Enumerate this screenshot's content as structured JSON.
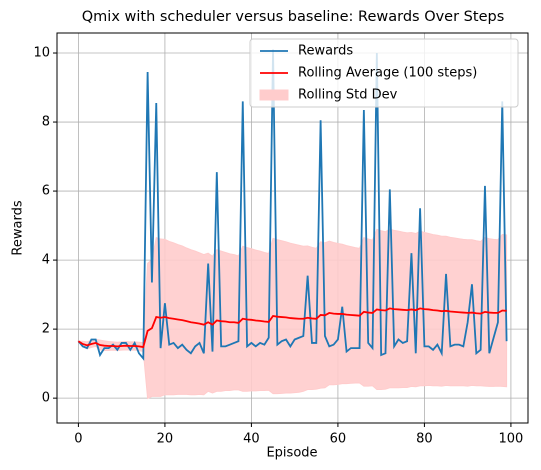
{
  "chart_data": {
    "type": "line",
    "title": "Qmix with scheduler versus baseline: Rewards Over Steps",
    "xlabel": "Episode",
    "ylabel": "Rewards",
    "x": [
      0,
      1,
      2,
      3,
      4,
      5,
      6,
      7,
      8,
      9,
      10,
      11,
      12,
      13,
      14,
      15,
      16,
      17,
      18,
      19,
      20,
      21,
      22,
      23,
      24,
      25,
      26,
      27,
      28,
      29,
      30,
      31,
      32,
      33,
      34,
      35,
      36,
      37,
      38,
      39,
      40,
      41,
      42,
      43,
      44,
      45,
      46,
      47,
      48,
      49,
      50,
      51,
      52,
      53,
      54,
      55,
      56,
      57,
      58,
      59,
      60,
      61,
      62,
      63,
      64,
      65,
      66,
      67,
      68,
      69,
      70,
      71,
      72,
      73,
      74,
      75,
      76,
      77,
      78,
      79,
      80,
      81,
      82,
      83,
      84,
      85,
      86,
      87,
      88,
      89,
      90,
      91,
      92,
      93,
      94,
      95,
      96,
      97,
      98,
      99
    ],
    "series": [
      {
        "name": "Rewards",
        "color": "#1f77b4",
        "values": [
          1.65,
          1.5,
          1.45,
          1.7,
          1.7,
          1.25,
          1.45,
          1.45,
          1.55,
          1.4,
          1.6,
          1.6,
          1.4,
          1.6,
          1.3,
          1.15,
          9.45,
          3.35,
          8.55,
          1.45,
          2.75,
          1.55,
          1.6,
          1.45,
          1.55,
          1.4,
          1.3,
          1.5,
          1.6,
          1.3,
          3.9,
          1.35,
          6.55,
          1.5,
          1.5,
          1.55,
          1.6,
          1.65,
          8.6,
          1.5,
          1.6,
          1.5,
          1.6,
          1.55,
          1.75,
          10.1,
          1.55,
          1.65,
          1.7,
          1.5,
          1.7,
          1.75,
          1.8,
          3.55,
          1.6,
          1.6,
          8.05,
          1.8,
          1.5,
          1.55,
          1.7,
          2.65,
          1.35,
          1.45,
          1.45,
          1.45,
          8.35,
          1.6,
          1.45,
          10.0,
          1.25,
          1.3,
          6.05,
          1.5,
          1.7,
          1.6,
          1.65,
          4.2,
          1.3,
          5.5,
          1.5,
          1.5,
          1.4,
          1.55,
          1.3,
          3.6,
          1.5,
          1.55,
          1.55,
          1.5,
          2.2,
          3.3,
          1.3,
          1.4,
          6.15,
          1.3,
          1.75,
          2.2,
          8.6,
          1.65
        ]
      },
      {
        "name": "Rolling Average (100 steps)",
        "color": "#ff0000",
        "values": [
          1.65,
          1.57,
          1.53,
          1.57,
          1.6,
          1.54,
          1.52,
          1.51,
          1.51,
          1.5,
          1.51,
          1.52,
          1.51,
          1.51,
          1.5,
          1.48,
          1.95,
          2.03,
          2.35,
          2.33,
          2.35,
          2.32,
          2.3,
          2.28,
          2.26,
          2.23,
          2.2,
          2.18,
          2.16,
          2.13,
          2.2,
          2.13,
          2.25,
          2.23,
          2.22,
          2.2,
          2.2,
          2.18,
          2.3,
          2.28,
          2.27,
          2.25,
          2.24,
          2.22,
          2.21,
          2.38,
          2.36,
          2.35,
          2.34,
          2.32,
          2.31,
          2.3,
          2.3,
          2.33,
          2.31,
          2.3,
          2.41,
          2.4,
          2.47,
          2.45,
          2.44,
          2.44,
          2.42,
          2.41,
          2.4,
          2.39,
          2.5,
          2.48,
          2.47,
          2.57,
          2.55,
          2.54,
          2.6,
          2.58,
          2.57,
          2.56,
          2.55,
          2.57,
          2.55,
          2.6,
          2.58,
          2.57,
          2.55,
          2.54,
          2.52,
          2.53,
          2.51,
          2.5,
          2.49,
          2.48,
          2.47,
          2.48,
          2.46,
          2.45,
          2.5,
          2.48,
          2.47,
          2.47,
          2.54,
          2.53
        ]
      },
      {
        "name": "Rolling Std Dev",
        "color": "#ffcccc",
        "values": [
          0,
          0.08,
          0.1,
          0.1,
          0.1,
          0.14,
          0.14,
          0.13,
          0.12,
          0.12,
          0.12,
          0.12,
          0.12,
          0.12,
          0.12,
          0.13,
          1.96,
          1.98,
          2.3,
          2.28,
          2.25,
          2.22,
          2.2,
          2.17,
          2.15,
          2.12,
          2.1,
          2.08,
          2.05,
          2.03,
          2.0,
          1.98,
          2.05,
          2.03,
          2.0,
          1.98,
          1.96,
          1.94,
          2.1,
          2.08,
          2.06,
          2.04,
          2.02,
          2.0,
          1.98,
          2.25,
          2.23,
          2.21,
          2.19,
          2.17,
          2.15,
          2.13,
          2.1,
          2.08,
          2.06,
          2.04,
          2.12,
          2.1,
          2.08,
          2.06,
          2.04,
          2.02,
          2.0,
          1.98,
          1.96,
          1.95,
          2.15,
          2.13,
          2.11,
          2.32,
          2.3,
          2.28,
          2.3,
          2.28,
          2.27,
          2.25,
          2.24,
          2.23,
          2.22,
          2.24,
          2.22,
          2.2,
          2.19,
          2.18,
          2.17,
          2.16,
          2.15,
          2.14,
          2.13,
          2.12,
          2.12,
          2.11,
          2.1,
          2.09,
          2.15,
          2.14,
          2.13,
          2.12,
          2.2,
          2.2
        ]
      }
    ],
    "xlim": [
      -4.95,
      103.95
    ],
    "ylim": [
      -0.72,
      10.58
    ],
    "xticks": [
      0,
      20,
      40,
      60,
      80,
      100
    ],
    "yticks": [
      0,
      2,
      4,
      6,
      8,
      10
    ],
    "grid": true,
    "legend": "upper right"
  }
}
